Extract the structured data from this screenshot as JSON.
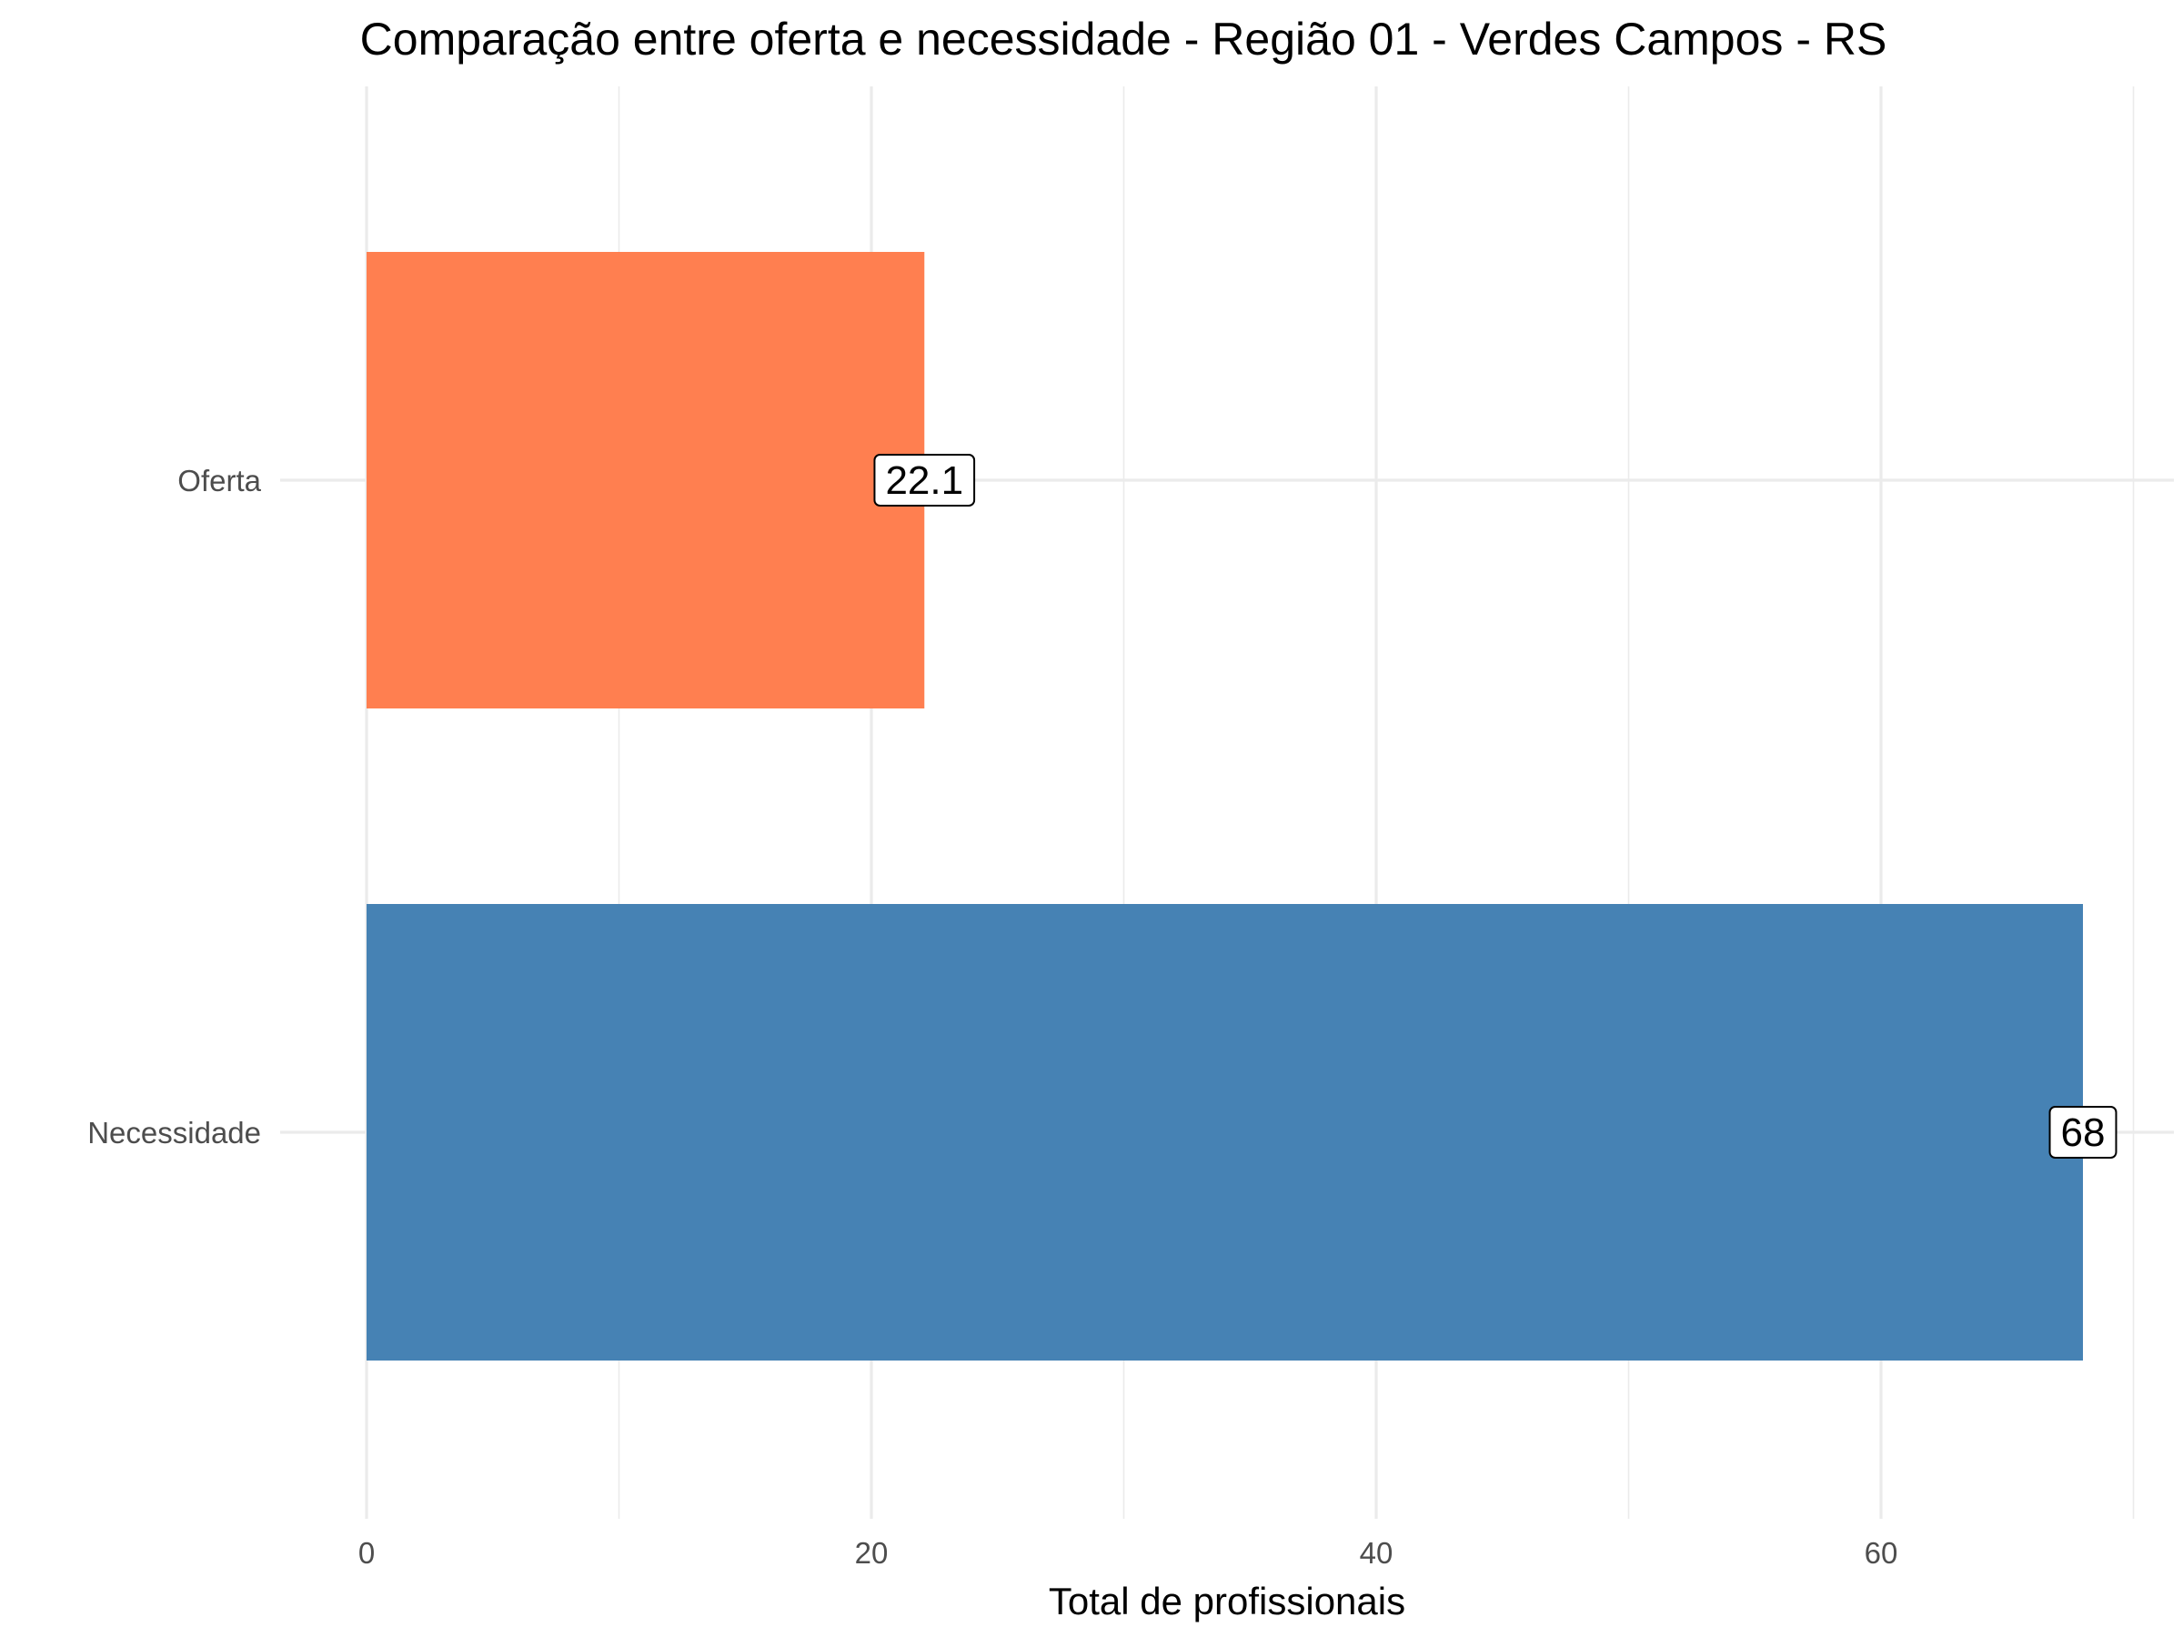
{
  "chart_data": {
    "type": "bar",
    "orientation": "horizontal",
    "title": "Comparação entre oferta e necessidade - Região 01 - Verdes Campos - RS",
    "xlabel": "Total de profissionais",
    "ylabel": "",
    "categories": [
      "Oferta",
      "Necessidade"
    ],
    "values": [
      22.1,
      68
    ],
    "value_labels": [
      "22.1",
      "68"
    ],
    "colors": [
      "#FF7F50",
      "#4682B4"
    ],
    "xlim": [
      0,
      70
    ],
    "x_ticks": [
      0,
      20,
      40,
      60
    ],
    "x_tick_labels": [
      "0",
      "20",
      "40",
      "60"
    ],
    "grid": true,
    "legend": "none"
  }
}
